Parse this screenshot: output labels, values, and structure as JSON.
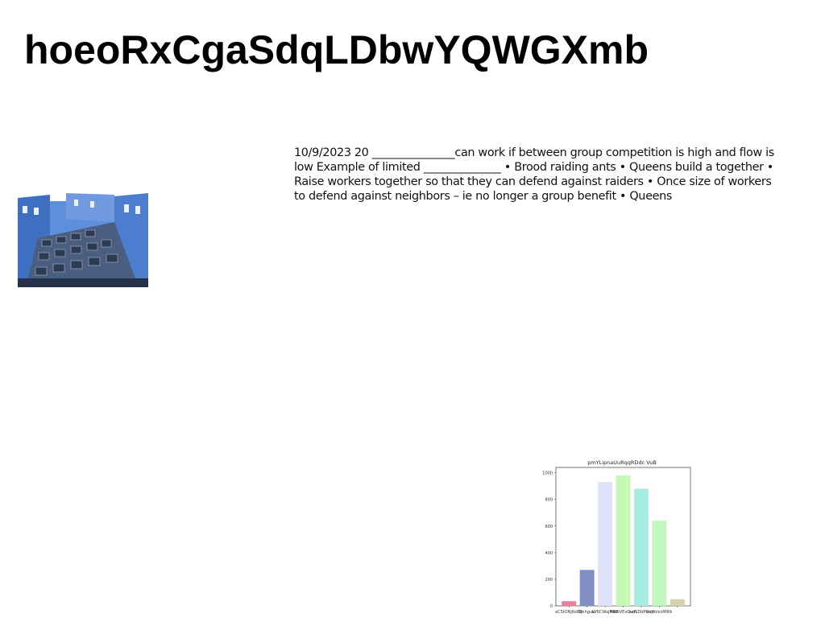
{
  "document": {
    "title": "hoeoRxCgaSdqLDbwYQWGXmb",
    "paragraph": "10/9/2023 20 _______________can work if between group competition is high and flow is low Example of limited ______________ • Brood raiding ants • Queens build a together • Raise workers together so that they can defend against raiders • Once size of workers to defend against neighbors – ie no longer a group benefit • Queens"
  },
  "image": {
    "subject": "blue-painted buildings with dye vats"
  },
  "chart_data": {
    "type": "bar",
    "title": "pmYLipnaUuRqqRDdc VuB",
    "categories": [
      "eCStONjNdBb",
      "QnhguU",
      "aVKCWajWdE",
      "RRmVEvQvm",
      "evfSDbPGojf",
      "mmbIxsMWk",
      ""
    ],
    "values": [
      35,
      270,
      930,
      980,
      880,
      640,
      50
    ],
    "colors": [
      "#e8809a",
      "#7f8fc4",
      "#e0e0f8",
      "#c8f8b8",
      "#a8ece0",
      "#c0f8c0",
      "#d8d0a8"
    ],
    "ylim": [
      0,
      1040
    ],
    "yticks": [
      0,
      200,
      400,
      600,
      800,
      1000
    ],
    "xlabel": "",
    "ylabel": ""
  }
}
